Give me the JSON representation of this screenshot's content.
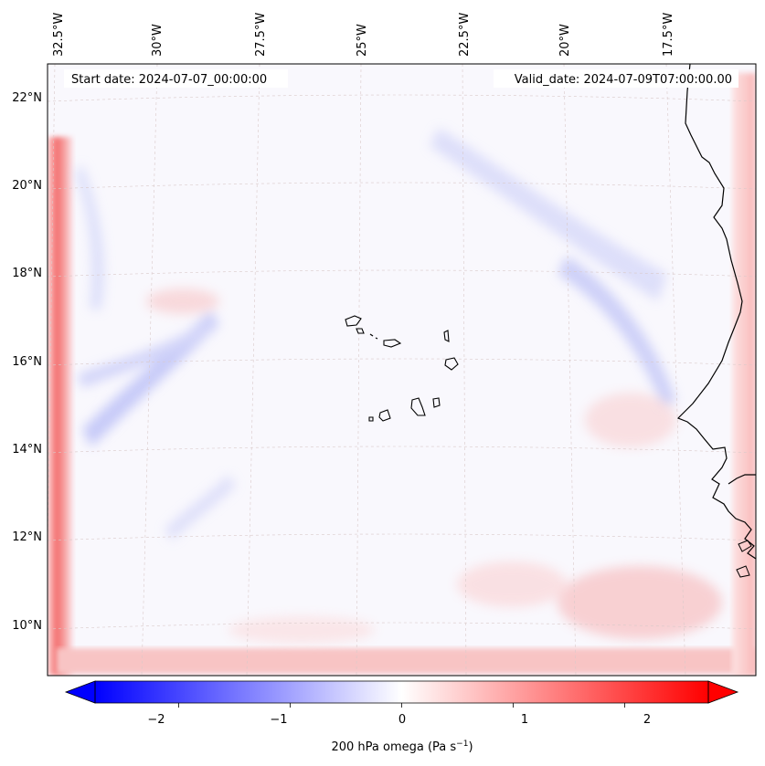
{
  "map": {
    "start_date": "Start date: 2024-07-07_00:00:00",
    "valid_date": "Valid_date: 2024-07-09T07:00:00.00",
    "lon_labels": [
      "32.5°W",
      "30°W",
      "27.5°W",
      "25°W",
      "22.5°W",
      "20°W",
      "17.5°W"
    ],
    "lat_labels": [
      "22°N",
      "20°N",
      "18°N",
      "16°N",
      "14°N",
      "12°N",
      "10°N"
    ],
    "colorbar": {
      "label": "200 hPa omega (Pa s",
      "label_exp": "−1",
      "label_close": ")",
      "ticks": [
        "−2",
        "−1",
        "0",
        "1",
        "2"
      ],
      "min": -2.75,
      "max": 2.75,
      "tick_values": [
        -2,
        -1,
        0,
        1,
        2
      ],
      "colors": {
        "neg": "#0000ff",
        "mid": "#ffffff",
        "pos": "#ff0000"
      }
    }
  }
}
